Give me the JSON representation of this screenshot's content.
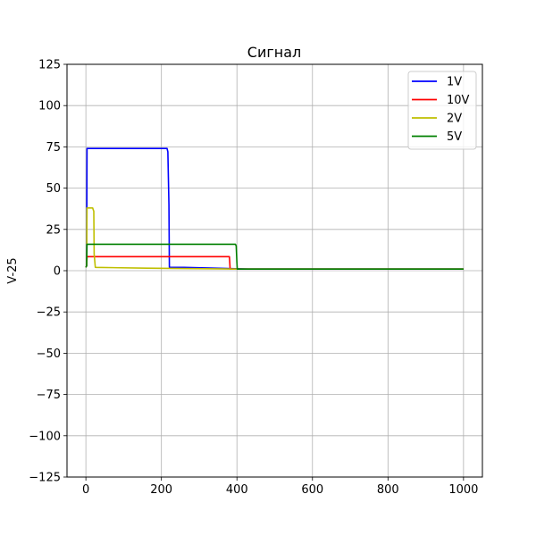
{
  "chart_data": {
    "type": "line",
    "title": "Сигнал",
    "xlabel": "",
    "ylabel": "V-25",
    "xlim": [
      -50,
      1050
    ],
    "ylim": [
      -125,
      125
    ],
    "xticks": [
      0,
      200,
      400,
      600,
      800,
      1000
    ],
    "yticks": [
      -125,
      -100,
      -75,
      -50,
      -25,
      0,
      25,
      50,
      75,
      100,
      125
    ],
    "grid": true,
    "legend": "top-right",
    "series": [
      {
        "name": "1V",
        "color": "#0000ff",
        "x": [
          0,
          2,
          3,
          215,
          217,
          220,
          221,
          260,
          430,
          1000
        ],
        "y": [
          2,
          3,
          74,
          74,
          72,
          40,
          2,
          2,
          1,
          1
        ]
      },
      {
        "name": "10V",
        "color": "#ff0000",
        "x": [
          0,
          2,
          3,
          380,
          381,
          382,
          1000
        ],
        "y": [
          2,
          3,
          8.5,
          8.5,
          5,
          1,
          1
        ]
      },
      {
        "name": "2V",
        "color": "#bfbf00",
        "x": [
          0,
          2,
          3,
          18,
          21,
          22,
          25,
          160,
          400,
          1000
        ],
        "y": [
          2,
          3,
          38,
          38,
          36,
          10,
          2,
          1.5,
          1,
          1
        ]
      },
      {
        "name": "5V",
        "color": "#008000",
        "x": [
          0,
          2,
          3,
          396,
          398,
          400,
          401,
          1000
        ],
        "y": [
          2,
          3,
          16,
          16,
          15,
          5,
          1,
          1
        ]
      }
    ]
  }
}
